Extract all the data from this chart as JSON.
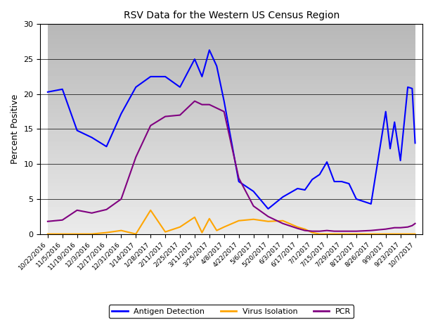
{
  "title": "RSV Data for the Western US Census Region",
  "ylabel": "Percent Positive",
  "ylim": [
    0,
    30
  ],
  "yticks": [
    0,
    5,
    10,
    15,
    20,
    25,
    30
  ],
  "background_top": "#c0c0c0",
  "background_bottom": "#e8e8e8",
  "x_labels": [
    "10/22/2016",
    "11/5/2016",
    "11/19/2016",
    "12/3/2016",
    "12/17/2016",
    "12/31/2016",
    "1/14/2017",
    "1/28/2017",
    "2/11/2017",
    "2/25/2017",
    "3/11/2017",
    "3/25/2017",
    "4/8/2017",
    "4/22/2017",
    "5/6/2017",
    "5/20/2017",
    "6/3/2017",
    "6/17/2017",
    "7/1/2017",
    "7/15/2017",
    "7/29/2017",
    "8/12/2017",
    "8/26/2017",
    "9/9/2017",
    "9/23/2017",
    "10/7/2017"
  ],
  "antigen": [
    20.3,
    20.7,
    14.8,
    13.8,
    12.5,
    17.2,
    21.0,
    22.5,
    22.5,
    21.0,
    25.0,
    22.5,
    26.3,
    24.0,
    19.0,
    7.5,
    6.1,
    3.6,
    5.3,
    6.5,
    6.3,
    7.8,
    8.5,
    10.3,
    7.5,
    7.5,
    7.2,
    5.0,
    4.3,
    17.5,
    12.2,
    16.0,
    10.5,
    21.0,
    20.8,
    13.0
  ],
  "antigen_x": [
    0,
    1,
    2,
    3,
    4,
    5,
    6,
    7,
    8,
    9,
    10,
    10.5,
    11,
    11.5,
    12,
    13,
    14,
    15,
    16,
    17,
    17.5,
    18,
    18.5,
    19,
    19.5,
    20,
    20.5,
    21,
    22,
    23,
    23.3,
    23.6,
    24,
    24.5,
    24.8,
    25
  ],
  "virus": [
    0.0,
    0.0,
    0.0,
    0.0,
    0.2,
    0.5,
    0.0,
    3.4,
    0.3,
    1.0,
    2.4,
    0.2,
    2.2,
    0.5,
    1.0,
    1.9,
    2.1,
    1.8,
    1.9,
    1.0,
    0.7,
    0.2,
    0.0,
    0.0,
    0.0,
    0.0,
    0.0,
    0.0,
    0.0,
    0.0,
    0.0,
    0.0,
    0.0,
    0.0,
    0.0,
    0.0
  ],
  "virus_x": [
    0,
    1,
    2,
    3,
    4,
    5,
    6,
    7,
    8,
    9,
    10,
    10.5,
    11,
    11.5,
    12,
    13,
    14,
    15,
    16,
    17,
    17.5,
    18,
    18.5,
    19,
    19.5,
    20,
    20.5,
    21,
    22,
    23,
    23.3,
    23.6,
    24,
    24.5,
    24.8,
    25
  ],
  "pcr": [
    1.8,
    2.0,
    3.4,
    3.0,
    3.5,
    5.0,
    11.0,
    15.5,
    16.8,
    17.0,
    19.0,
    18.5,
    18.5,
    18.0,
    17.5,
    8.0,
    4.0,
    2.5,
    1.5,
    0.8,
    0.5,
    0.4,
    0.4,
    0.5,
    0.4,
    0.4,
    0.4,
    0.4,
    0.5,
    0.7,
    0.8,
    0.9,
    0.9,
    1.0,
    1.2,
    1.5
  ],
  "pcr_x": [
    0,
    1,
    2,
    3,
    4,
    5,
    6,
    7,
    8,
    9,
    10,
    10.5,
    11,
    11.5,
    12,
    13,
    14,
    15,
    16,
    17,
    17.5,
    18,
    18.5,
    19,
    19.5,
    20,
    20.5,
    21,
    22,
    23,
    23.3,
    23.6,
    24,
    24.5,
    24.8,
    25
  ],
  "antigen_color": "#0000ff",
  "virus_color": "#ffa500",
  "pcr_color": "#800080",
  "legend_labels": [
    "Antigen Detection",
    "Virus Isolation",
    "PCR"
  ],
  "grid_color": "#000000",
  "grid_alpha": 0.5
}
